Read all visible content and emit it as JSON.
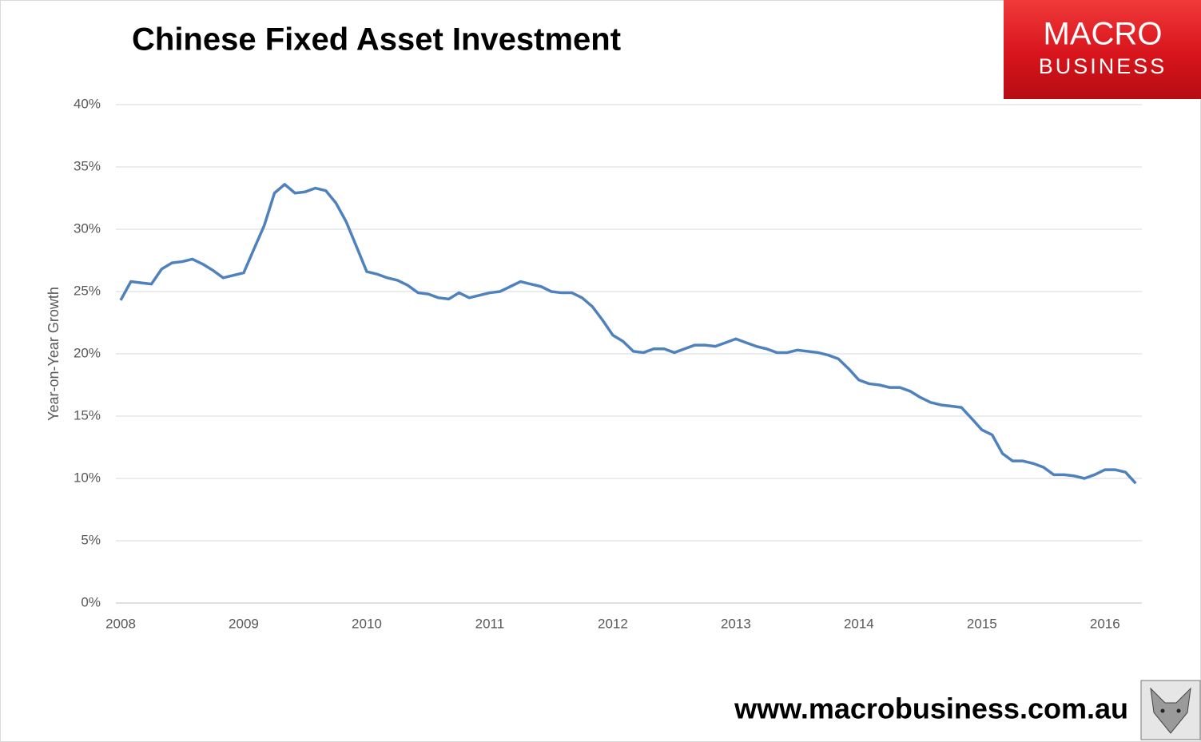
{
  "chart_data": {
    "type": "line",
    "title": "Chinese Fixed Asset Investment",
    "y_label": "Year-on-Year Growth",
    "x": [
      2008,
      2008.083,
      2008.167,
      2008.25,
      2008.333,
      2008.417,
      2008.5,
      2008.583,
      2008.667,
      2008.75,
      2008.833,
      2008.917,
      2009,
      2009.083,
      2009.167,
      2009.25,
      2009.333,
      2009.417,
      2009.5,
      2009.583,
      2009.667,
      2009.75,
      2009.833,
      2009.917,
      2010,
      2010.083,
      2010.167,
      2010.25,
      2010.333,
      2010.417,
      2010.5,
      2010.583,
      2010.667,
      2010.75,
      2010.833,
      2010.917,
      2011,
      2011.083,
      2011.167,
      2011.25,
      2011.333,
      2011.417,
      2011.5,
      2011.583,
      2011.667,
      2011.75,
      2011.833,
      2011.917,
      2012,
      2012.083,
      2012.167,
      2012.25,
      2012.333,
      2012.417,
      2012.5,
      2012.583,
      2012.667,
      2012.75,
      2012.833,
      2012.917,
      2013,
      2013.083,
      2013.167,
      2013.25,
      2013.333,
      2013.417,
      2013.5,
      2013.583,
      2013.667,
      2013.75,
      2013.833,
      2013.917,
      2014,
      2014.083,
      2014.167,
      2014.25,
      2014.333,
      2014.417,
      2014.5,
      2014.583,
      2014.667,
      2014.75,
      2014.833,
      2014.917,
      2015,
      2015.083,
      2015.167,
      2015.25,
      2015.333,
      2015.417,
      2015.5,
      2015.583,
      2015.667,
      2015.75,
      2015.833,
      2015.917,
      2016,
      2016.083,
      2016.167,
      2016.25
    ],
    "series": [
      {
        "name": "Year-on-Year Growth",
        "color": "#4f81bd",
        "values": [
          24.3,
          25.8,
          25.7,
          25.6,
          26.8,
          27.3,
          27.4,
          27.6,
          27.2,
          26.7,
          26.1,
          26.3,
          26.5,
          28.4,
          30.3,
          32.9,
          33.6,
          32.9,
          33.0,
          33.3,
          33.1,
          32.1,
          30.6,
          28.6,
          26.6,
          26.4,
          26.1,
          25.9,
          25.5,
          24.9,
          24.8,
          24.5,
          24.4,
          24.9,
          24.5,
          24.7,
          24.9,
          25.0,
          25.4,
          25.8,
          25.6,
          25.4,
          25.0,
          24.9,
          24.9,
          24.5,
          23.8,
          22.7,
          21.5,
          21.0,
          20.2,
          20.1,
          20.4,
          20.4,
          20.1,
          20.4,
          20.7,
          20.7,
          20.6,
          20.9,
          21.2,
          20.9,
          20.6,
          20.4,
          20.1,
          20.1,
          20.3,
          20.2,
          20.1,
          19.9,
          19.6,
          18.8,
          17.9,
          17.6,
          17.5,
          17.3,
          17.3,
          17.0,
          16.5,
          16.1,
          15.9,
          15.8,
          15.7,
          14.8,
          13.9,
          13.5,
          12.0,
          11.4,
          11.4,
          11.2,
          10.9,
          10.3,
          10.3,
          10.2,
          10.0,
          10.3,
          10.7,
          10.7,
          10.5,
          9.6
        ]
      }
    ],
    "xlim": [
      2008,
      2016.3
    ],
    "xticks": [
      2008,
      2009,
      2010,
      2011,
      2012,
      2013,
      2014,
      2015,
      2016
    ],
    "ylim": [
      0,
      40
    ],
    "yticks": [
      {
        "value": 0,
        "label": "0%"
      },
      {
        "value": 5,
        "label": "5%"
      },
      {
        "value": 10,
        "label": "10%"
      },
      {
        "value": 15,
        "label": "15%"
      },
      {
        "value": 20,
        "label": "20%"
      },
      {
        "value": 25,
        "label": "25%"
      },
      {
        "value": 30,
        "label": "30%"
      },
      {
        "value": 35,
        "label": "35%"
      },
      {
        "value": 40,
        "label": "40%"
      }
    ],
    "grid": true
  },
  "logo": {
    "line1": "MACRO",
    "line2": "BUSINESS"
  },
  "footer": {
    "url": "www.macrobusiness.com.au"
  }
}
